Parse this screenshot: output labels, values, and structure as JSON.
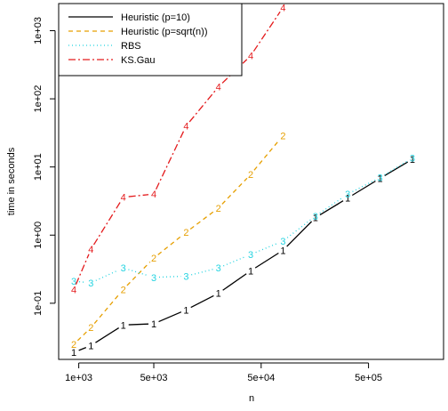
{
  "chart_data": {
    "type": "line",
    "title": "",
    "xlabel": "n",
    "ylabel": "time in seconds",
    "x_scale": "log",
    "y_scale": "log",
    "xlim": [
      650,
      2500000
    ],
    "ylim": [
      0.015,
      2500
    ],
    "x_ticks": [
      {
        "value": 1000,
        "label": "1e+03"
      },
      {
        "value": 5000,
        "label": "5e+03"
      },
      {
        "value": 50000,
        "label": "5e+04"
      },
      {
        "value": 500000,
        "label": "5e+05"
      }
    ],
    "y_ticks": [
      {
        "value": 0.1,
        "label": "1e-01"
      },
      {
        "value": 1,
        "label": "1e+00"
      },
      {
        "value": 10,
        "label": "1e+01"
      },
      {
        "value": 100,
        "label": "1e+02"
      },
      {
        "value": 1000,
        "label": "1e+03"
      }
    ],
    "legend_position": "top-left",
    "series": [
      {
        "name": "Heuristic (p=10)",
        "marker": "1",
        "color": "#000000",
        "dash": "",
        "x": [
          900,
          1300,
          2600,
          5000,
          10000,
          20000,
          40000,
          80000,
          160000,
          320000,
          640000,
          1280000
        ],
        "y": [
          0.019,
          0.024,
          0.048,
          0.05,
          0.08,
          0.14,
          0.3,
          0.6,
          1.8,
          3.5,
          6.8,
          13
        ]
      },
      {
        "name": "Heuristic (p=sqrt(n))",
        "marker": "2",
        "color": "#e69f00",
        "dash": "5,4",
        "x": [
          900,
          1300,
          2600,
          5000,
          10000,
          20000,
          40000,
          80000
        ],
        "y": [
          0.025,
          0.044,
          0.16,
          0.46,
          1.1,
          2.5,
          7.8,
          29
        ]
      },
      {
        "name": "RBS",
        "marker": "3",
        "color": "#22d3e0",
        "dash": "1,3",
        "x": [
          900,
          1300,
          2600,
          5000,
          10000,
          20000,
          40000,
          80000,
          160000,
          320000,
          640000,
          1280000
        ],
        "y": [
          0.21,
          0.2,
          0.33,
          0.24,
          0.25,
          0.33,
          0.52,
          0.82,
          1.9,
          4.0,
          7.0,
          13.5
        ]
      },
      {
        "name": "KS.Gau",
        "marker": "4",
        "color": "#e41a1c",
        "dash": "8,3,2,3",
        "x": [
          900,
          1300,
          2600,
          5000,
          10000,
          20000,
          40000,
          80000
        ],
        "y": [
          0.16,
          0.62,
          3.6,
          4.0,
          40,
          150,
          430,
          2200
        ]
      }
    ]
  }
}
